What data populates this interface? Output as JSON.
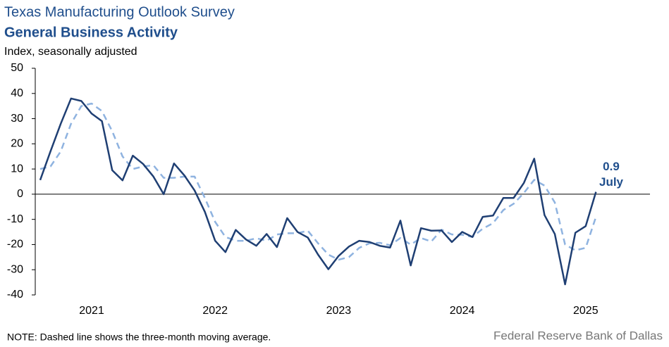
{
  "chart_data": {
    "type": "line",
    "title": "Texas Manufacturing Outlook Survey",
    "subtitle": "General Business Activity",
    "y_label": "Index, seasonally adjusted",
    "note": "NOTE: Dashed line shows the three-month  moving average.",
    "source": "Federal Reserve Bank of Dallas",
    "annotations": [
      "0.9",
      "July"
    ],
    "categories": [
      null,
      null,
      null,
      null,
      null,
      "2021",
      null,
      null,
      null,
      null,
      null,
      null,
      null,
      null,
      null,
      null,
      null,
      "2022",
      null,
      null,
      null,
      null,
      null,
      null,
      null,
      null,
      null,
      null,
      null,
      "2023",
      null,
      null,
      null,
      null,
      null,
      null,
      null,
      null,
      null,
      null,
      null,
      "2024",
      null,
      null,
      null,
      null,
      null,
      null,
      null,
      null,
      null,
      null,
      null,
      "2025",
      null
    ],
    "series": [
      {
        "name": "General Business Activity",
        "color": "#1f3f73",
        "dashed": false,
        "values": [
          5.6,
          17,
          28,
          38,
          37,
          32,
          29,
          9.5,
          5.5,
          15.3,
          12,
          7,
          0,
          12.2,
          7.5,
          1.5,
          -7,
          -18.5,
          -23,
          -14.2,
          -18,
          -20.5,
          -15.8,
          -21,
          -9.5,
          -15,
          -17.2,
          -24,
          -29.8,
          -24.5,
          -20.8,
          -18.5,
          -19,
          -20.5,
          -21.2,
          -10.5,
          -28.3,
          -13.5,
          -14.5,
          -14.4,
          -19,
          -15,
          -17,
          -9,
          -8.5,
          -1.5,
          -1.5,
          4.5,
          14.1,
          -8.3,
          -15.8,
          -35.8,
          -15.3,
          -12.7,
          0.9
        ]
      },
      {
        "name": "Three-month moving average",
        "color": "#8fb3e0",
        "dashed": true,
        "values": [
          10,
          11,
          17,
          28,
          35,
          36,
          33,
          25,
          15,
          10,
          11,
          11.5,
          6.5,
          6.5,
          7,
          7,
          -1.5,
          -11,
          -17,
          -18.5,
          -18.5,
          -17.5,
          -18.5,
          -16,
          -15.5,
          -15.5,
          -14.5,
          -19.5,
          -24,
          -26,
          -25,
          -21.3,
          -19.5,
          -19.3,
          -20.3,
          -17.4,
          -20,
          -17.4,
          -18.8,
          -14.1,
          -16,
          -16.1,
          -17,
          -13.7,
          -11.5,
          -6.3,
          -3.8,
          0.5,
          5.7,
          3.4,
          -3.3,
          -20,
          -22.3,
          -21.3,
          -9
        ]
      }
    ],
    "ylim": [
      -40,
      50
    ],
    "yticks": [
      -40,
      -30,
      -20,
      -10,
      0,
      10,
      20,
      30,
      40,
      50
    ],
    "grid": false,
    "legend": false
  }
}
